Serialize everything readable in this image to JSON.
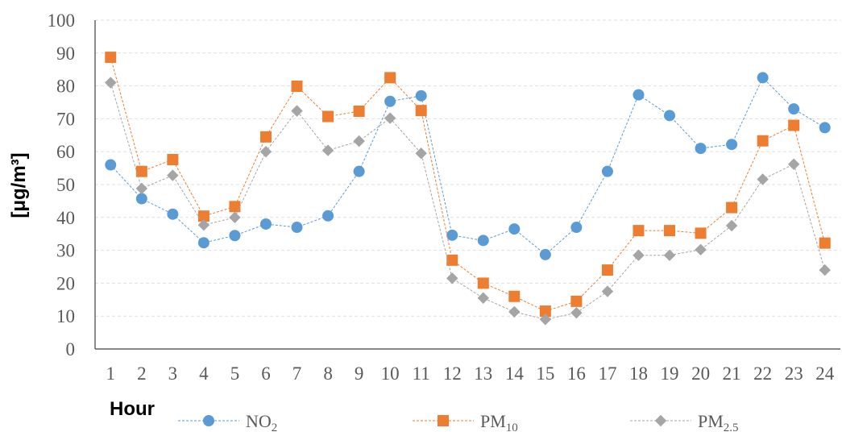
{
  "chart_data": {
    "type": "line",
    "title": "",
    "xlabel": "Hour",
    "ylabel": "[μg/m³]",
    "ylim": [
      0,
      100
    ],
    "yticks": [
      0,
      10,
      20,
      30,
      40,
      50,
      60,
      70,
      80,
      90,
      100
    ],
    "grid": true,
    "legend_position": "bottom",
    "x": [
      1,
      2,
      3,
      4,
      5,
      6,
      7,
      8,
      9,
      10,
      11,
      12,
      13,
      14,
      15,
      16,
      17,
      18,
      19,
      20,
      21,
      22,
      23,
      24
    ],
    "series": [
      {
        "name": "NO2",
        "name_main": "NO",
        "name_sub": "2",
        "color": "#5b9bd5",
        "marker": "circle",
        "values": [
          56,
          45.7,
          41,
          32.3,
          34.5,
          38,
          37,
          40.5,
          54,
          75.3,
          77,
          34.6,
          33,
          36.5,
          28.7,
          37,
          54,
          77.3,
          71,
          61,
          62.2,
          82.5,
          73,
          67.3
        ]
      },
      {
        "name": "PM10",
        "name_main": "PM",
        "name_sub": "10",
        "color": "#ed7d31",
        "marker": "square",
        "values": [
          88.7,
          54,
          57.6,
          40.4,
          43.3,
          64.5,
          79.9,
          70.7,
          72.3,
          82.5,
          72.5,
          27,
          20,
          16,
          11.5,
          14.5,
          24,
          36,
          36,
          35.2,
          43,
          63.3,
          68,
          32.2
        ]
      },
      {
        "name": "PM2.5",
        "name_main": "PM",
        "name_sub": "2.5",
        "color": "#a5a5a5",
        "marker": "diamond",
        "values": [
          81,
          48.8,
          52.8,
          37.7,
          40,
          60,
          72.4,
          60.4,
          63.2,
          70.2,
          59.5,
          21.5,
          15.5,
          11.3,
          9,
          11,
          17.5,
          28.5,
          28.5,
          30.2,
          37.5,
          51.6,
          56.2,
          24
        ]
      }
    ]
  }
}
